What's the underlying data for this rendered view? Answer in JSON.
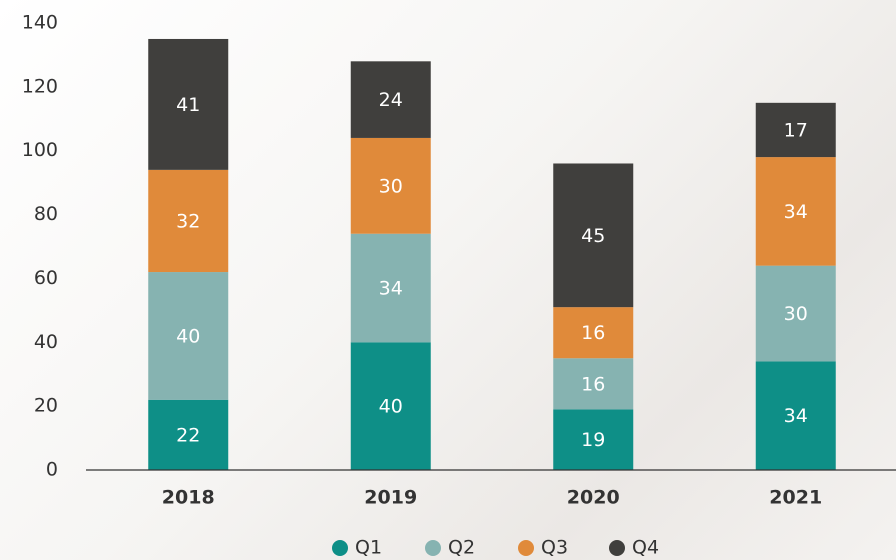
{
  "chart_data": {
    "type": "bar",
    "stacked": true,
    "categories": [
      "2018",
      "2019",
      "2020",
      "2021"
    ],
    "series": [
      {
        "name": "Q1",
        "color": "#0e8f87",
        "values": [
          22,
          40,
          19,
          34
        ]
      },
      {
        "name": "Q2",
        "color": "#86b3b1",
        "values": [
          40,
          34,
          16,
          30
        ]
      },
      {
        "name": "Q3",
        "color": "#e08a3a",
        "values": [
          32,
          30,
          16,
          34
        ]
      },
      {
        "name": "Q4",
        "color": "#403f3d",
        "values": [
          41,
          24,
          45,
          17
        ]
      }
    ],
    "ylim": [
      0,
      140
    ],
    "yticks": [
      0,
      20,
      40,
      60,
      80,
      100,
      120,
      140
    ],
    "grid": false,
    "legend": "bottom"
  }
}
